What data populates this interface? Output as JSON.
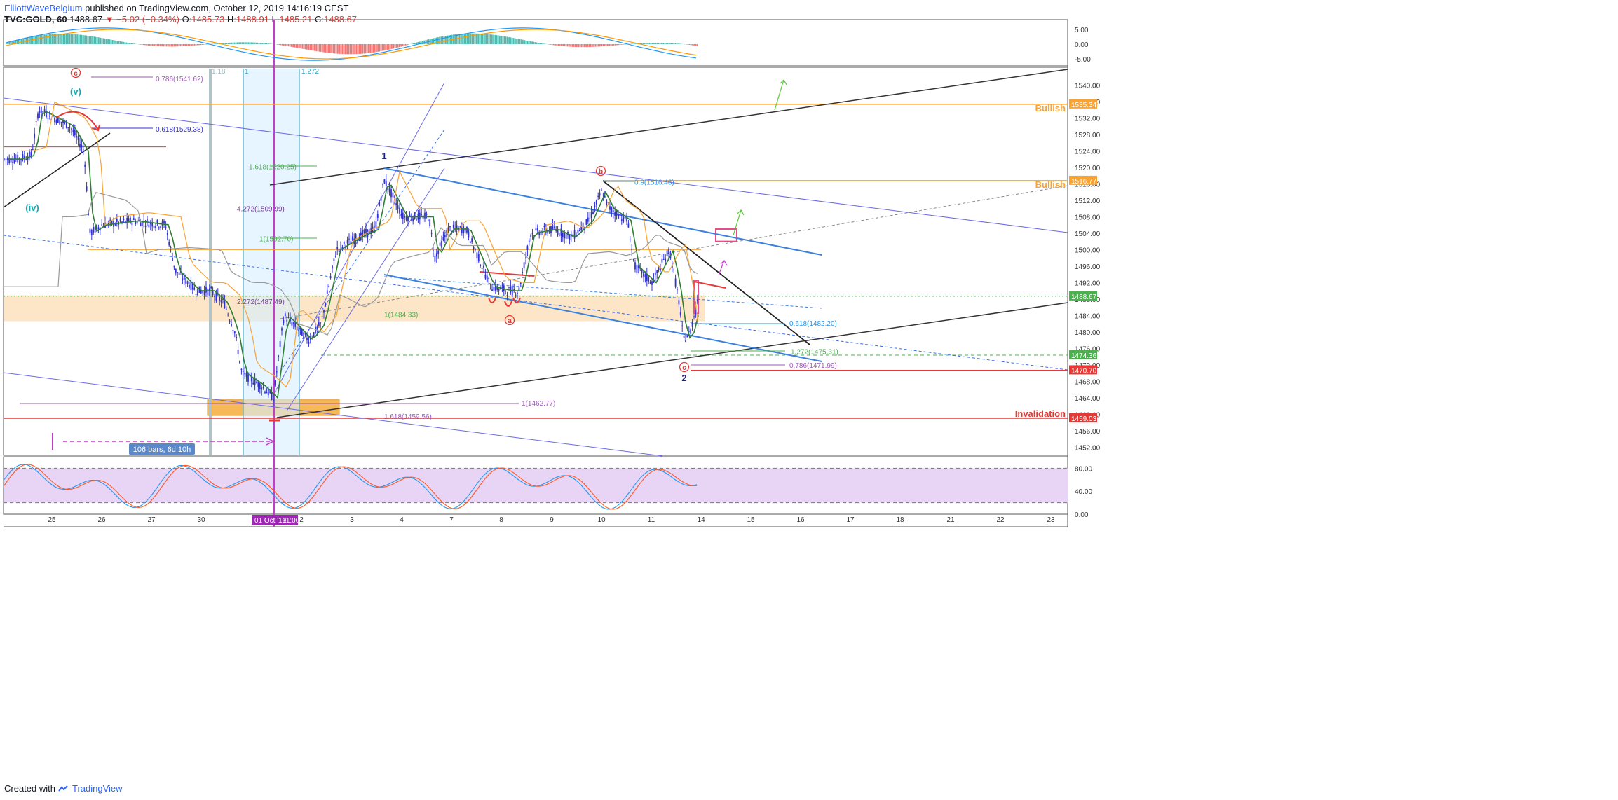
{
  "header": {
    "author": "ElliottWaveBelgium",
    "published": "published on TradingView.com, October 12, 2019 14:16:19 CEST",
    "symbol": "TVC:GOLD, 60",
    "change": "▼ −5.02 (−0.34%)",
    "last": "1488.67",
    "o_label": "O:",
    "o_val": "1485.73",
    "h_label": "H:",
    "h_val": "1488.91",
    "l_label": "L:",
    "l_val": "1485.21",
    "c_label": "C:",
    "c_val": "1488.67"
  },
  "footer": {
    "created": "Created with",
    "brand": "TradingView"
  },
  "colors": {
    "up": "#3030d0",
    "down": "#3030d0",
    "orange": "#f7a335",
    "green": "#2e7d32",
    "purple": "#9b59b6",
    "red": "#e53935",
    "blue": "#2196f3",
    "dark": "#444",
    "zone": "#fbe2bd",
    "stoch_bg": "#e8d5f5"
  },
  "chart_data": [
    {
      "type": "line",
      "panel": "price",
      "symbol": "TVC:GOLD",
      "interval": "60",
      "y_axis_ticks": [
        1540.0,
        1536.0,
        1532.0,
        1528.0,
        1524.0,
        1520.0,
        1516.0,
        1512.0,
        1508.0,
        1504.0,
        1500.0,
        1496.0,
        1492.0,
        1488.0,
        1484.0,
        1480.0,
        1476.0,
        1472.0,
        1468.0,
        1464.0,
        1460.0,
        1456.0,
        1452.0
      ],
      "ylim": [
        1450.0,
        1544.0
      ],
      "x_axis_ticks": [
        "25",
        "26",
        "27",
        "30",
        "01 Oct '19",
        "2",
        "3",
        "4",
        "7",
        "8",
        "9",
        "10",
        "11",
        "14",
        "15",
        "16",
        "17",
        "18",
        "21",
        "22",
        "23"
      ],
      "price_labels": [
        {
          "text": "1535.34",
          "value": 1535.34,
          "color": "#f7a335"
        },
        {
          "text": "1516.77",
          "value": 1516.77,
          "color": "#f7a335"
        },
        {
          "text": "1488.67",
          "value": 1488.67,
          "color": "#4caf50"
        },
        {
          "text": "1474.36",
          "value": 1474.36,
          "color": "#4caf50"
        },
        {
          "text": "1470.70",
          "value": 1470.7,
          "color": "#e53935"
        },
        {
          "text": "1459.03",
          "value": 1459.03,
          "color": "#e53935"
        }
      ],
      "annotations": {
        "fib_labels": [
          {
            "text": "0.786(1541.62)",
            "value": 1541.62,
            "color": "#9b59b6"
          },
          {
            "text": "0.618(1529.38)",
            "value": 1529.38,
            "color": "#3030d0"
          },
          {
            "text": "1.618(1520.25)",
            "value": 1520.25,
            "color": "#4caf50"
          },
          {
            "text": "4.272(1509.99)",
            "value": 1509.99,
            "color": "#7b3fa0"
          },
          {
            "text": "1(1502.70)",
            "value": 1502.7,
            "color": "#4caf50"
          },
          {
            "text": "2.272(1487.49)",
            "value": 1487.49,
            "color": "#7b3fa0"
          },
          {
            "text": "1(1484.33)",
            "value": 1484.33,
            "color": "#4caf50"
          },
          {
            "text": "1(1462.77)",
            "value": 1462.77,
            "color": "#9b59b6"
          },
          {
            "text": "1.618(1459.56)",
            "value": 1459.56,
            "color": "#9b59b6"
          },
          {
            "text": "0.9(1516.46)",
            "value": 1516.46,
            "color": "#2196f3"
          },
          {
            "text": "0.618(1482.20)",
            "value": 1482.2,
            "color": "#2196f3"
          },
          {
            "text": "1.272(1475.31)",
            "value": 1475.31,
            "color": "#4caf50"
          },
          {
            "text": "0.786(1471.99)",
            "value": 1471.99,
            "color": "#9b59b6"
          }
        ],
        "time_fib_labels": [
          "1.18",
          "1",
          "1.272"
        ],
        "wave_labels": [
          "c",
          "(v)",
          "(iv)",
          "1",
          "b",
          "a",
          "c",
          "2"
        ],
        "zone_labels": [
          {
            "text": "Bullish",
            "value": 1535.34
          },
          {
            "text": "Bullish",
            "value": 1516.77
          },
          {
            "text": "Invalidation",
            "value": 1459.03
          }
        ],
        "range_label": "106 bars, 6d 10h",
        "cursor_date": "01 Oct '19",
        "cursor_time": "11:00"
      }
    },
    {
      "type": "line",
      "panel": "macd",
      "y_axis_ticks": [
        5.0,
        0.0,
        -5.0
      ],
      "ylim": [
        -8,
        8
      ],
      "series": []
    },
    {
      "type": "line",
      "panel": "stochastic",
      "y_axis_ticks": [
        80.0,
        40.0,
        0.0
      ],
      "ylim": [
        0,
        100
      ],
      "levels": [
        80,
        20
      ],
      "series": []
    }
  ]
}
